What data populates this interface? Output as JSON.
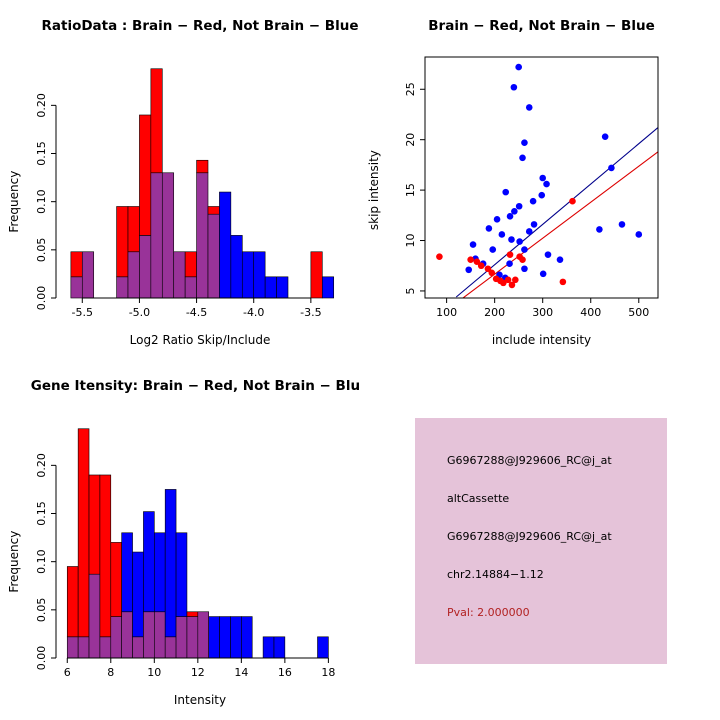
{
  "colors": {
    "red": "#FF0000",
    "blue": "#0000FF",
    "overlap": "#993399",
    "fit_line_blue": "#00008B",
    "fit_line_red": "#DD0000",
    "axis": "#000000",
    "background": "#FFFFFF"
  },
  "info_box": {
    "background": "#E5C3D9",
    "text_color": "#000000",
    "pval_color": "#B22222",
    "lines": [
      "G6967288@J929606_RC@j_at",
      "altCassette",
      "G6967288@J929606_RC@j_at",
      "chr2.14884−1.12",
      "Pval: 2.000000"
    ]
  },
  "chart_data": [
    {
      "type": "bar",
      "name": "ratio_histogram",
      "title": "RatioData : Brain − Red, Not Brain − Blue",
      "xlabel": "Log2 Ratio Skip/Include",
      "ylabel": "Frequency",
      "xlim": [
        -5.66,
        -3.28
      ],
      "ylim": [
        0,
        0.245
      ],
      "bin_start": -5.6,
      "bin_width": 0.1,
      "xticks": {
        "values": [
          -5.5,
          -5.0,
          -4.5,
          -4.0,
          -3.5
        ],
        "labels": [
          "-5.5",
          "-5.0",
          "-4.5",
          "-4.0",
          "-3.5"
        ]
      },
      "yticks": {
        "values": [
          0,
          0.05,
          0.1,
          0.15,
          0.2
        ],
        "labels": [
          "0.00",
          "0.05",
          "0.10",
          "0.15",
          "0.20"
        ]
      },
      "series": [
        {
          "name": "Brain (red)",
          "color_key": "red",
          "values": [
            0.048,
            0.048,
            0,
            0,
            0.095,
            0.095,
            0.19,
            0.238,
            0.13,
            0.048,
            0.048,
            0.143,
            0.095,
            0,
            0,
            0,
            0,
            0,
            0,
            0,
            0,
            0.048,
            0
          ]
        },
        {
          "name": "Not Brain (blue)",
          "color_key": "blue",
          "values": [
            0.022,
            0.048,
            0,
            0,
            0.022,
            0.048,
            0.065,
            0.13,
            0.13,
            0.048,
            0.022,
            0.13,
            0.087,
            0.11,
            0.065,
            0.048,
            0.048,
            0.022,
            0.022,
            0,
            0,
            0,
            0.022
          ]
        }
      ]
    },
    {
      "type": "scatter",
      "name": "intensity_scatter",
      "title": "Brain − Red, Not Brain − Blue",
      "xlabel": "include intensity",
      "ylabel": "skip intensity",
      "xlim": [
        55,
        540
      ],
      "ylim": [
        4.3,
        28.2
      ],
      "xticks": {
        "values": [
          100,
          200,
          300,
          400,
          500
        ],
        "labels": [
          "100",
          "200",
          "300",
          "400",
          "500"
        ]
      },
      "yticks": {
        "values": [
          5,
          10,
          15,
          20,
          25
        ],
        "labels": [
          "5",
          "10",
          "15",
          "20",
          "25"
        ]
      },
      "series": [
        {
          "name": "Not Brain (blue)",
          "color_key": "blue",
          "points": [
            [
              250,
              27.2
            ],
            [
              240,
              25.2
            ],
            [
              272,
              23.2
            ],
            [
              430,
              20.3
            ],
            [
              262,
              19.7
            ],
            [
              258,
              18.2
            ],
            [
              443,
              17.2
            ],
            [
              300,
              16.2
            ],
            [
              308,
              15.6
            ],
            [
              223,
              14.8
            ],
            [
              298,
              14.5
            ],
            [
              280,
              13.9
            ],
            [
              251,
              13.4
            ],
            [
              241,
              12.9
            ],
            [
              232,
              12.4
            ],
            [
              205,
              12.1
            ],
            [
              188,
              11.2
            ],
            [
              282,
              11.6
            ],
            [
              465,
              11.6
            ],
            [
              418,
              11.1
            ],
            [
              272,
              10.9
            ],
            [
              500,
              10.6
            ],
            [
              215,
              10.6
            ],
            [
              235,
              10.1
            ],
            [
              252,
              9.9
            ],
            [
              155,
              9.6
            ],
            [
              196,
              9.1
            ],
            [
              262,
              9.1
            ],
            [
              311,
              8.6
            ],
            [
              336,
              8.1
            ],
            [
              160,
              8.2
            ],
            [
              231,
              7.7
            ],
            [
              176,
              7.7
            ],
            [
              262,
              7.2
            ],
            [
              146,
              7.1
            ],
            [
              301,
              6.7
            ],
            [
              210,
              6.6
            ],
            [
              222,
              6.3
            ]
          ]
        },
        {
          "name": "Brain (red)",
          "color_key": "red",
          "points": [
            [
              85,
              8.4
            ],
            [
              150,
              8.1
            ],
            [
              163,
              7.9
            ],
            [
              232,
              8.6
            ],
            [
              252,
              8.4
            ],
            [
              258,
              8.1
            ],
            [
              172,
              7.5
            ],
            [
              186,
              7.2
            ],
            [
              194,
              6.8
            ],
            [
              203,
              6.2
            ],
            [
              212,
              6.0
            ],
            [
              218,
              5.8
            ],
            [
              228,
              6.1
            ],
            [
              236,
              5.6
            ],
            [
              243,
              6.1
            ],
            [
              342,
              5.9
            ],
            [
              362,
              13.9
            ]
          ]
        }
      ],
      "fit_lines": [
        {
          "name": "blue-fit",
          "color_key": "fit_line_blue",
          "x1": 120,
          "y1": 4.4,
          "x2": 540,
          "y2": 21.2
        },
        {
          "name": "red-fit",
          "color_key": "fit_line_red",
          "x1": 120,
          "y1": 3.8,
          "x2": 540,
          "y2": 18.8
        }
      ]
    },
    {
      "type": "bar",
      "name": "gene_intensity_histogram",
      "title": "Gene Itensity: Brain − Red, Not Brain − Blue",
      "xlabel": "Intensity",
      "ylabel": "Frequency",
      "xlim": [
        5.85,
        18.35
      ],
      "ylim": [
        0,
        0.245
      ],
      "bin_start": 6,
      "bin_width": 0.5,
      "xticks": {
        "values": [
          6,
          8,
          10,
          12,
          14,
          16,
          18
        ],
        "labels": [
          "6",
          "8",
          "10",
          "12",
          "14",
          "16",
          "18"
        ]
      },
      "yticks": {
        "values": [
          0,
          0.05,
          0.1,
          0.15,
          0.2
        ],
        "labels": [
          "0.00",
          "0.05",
          "0.10",
          "0.15",
          "0.20"
        ]
      },
      "series": [
        {
          "name": "Brain (red)",
          "color_key": "red",
          "values": [
            0.095,
            0.238,
            0.19,
            0.19,
            0.12,
            0.048,
            0.022,
            0.048,
            0.048,
            0.022,
            0.043,
            0.048,
            0.048,
            0,
            0,
            0,
            0,
            0,
            0,
            0,
            0,
            0,
            0,
            0
          ]
        },
        {
          "name": "Not Brain (blue)",
          "color_key": "blue",
          "values": [
            0.022,
            0.022,
            0.087,
            0.022,
            0.043,
            0.13,
            0.11,
            0.152,
            0.13,
            0.175,
            0.13,
            0.043,
            0.048,
            0.043,
            0.043,
            0.043,
            0.043,
            0,
            0.022,
            0.022,
            0,
            0,
            0,
            0.022
          ]
        }
      ]
    }
  ]
}
